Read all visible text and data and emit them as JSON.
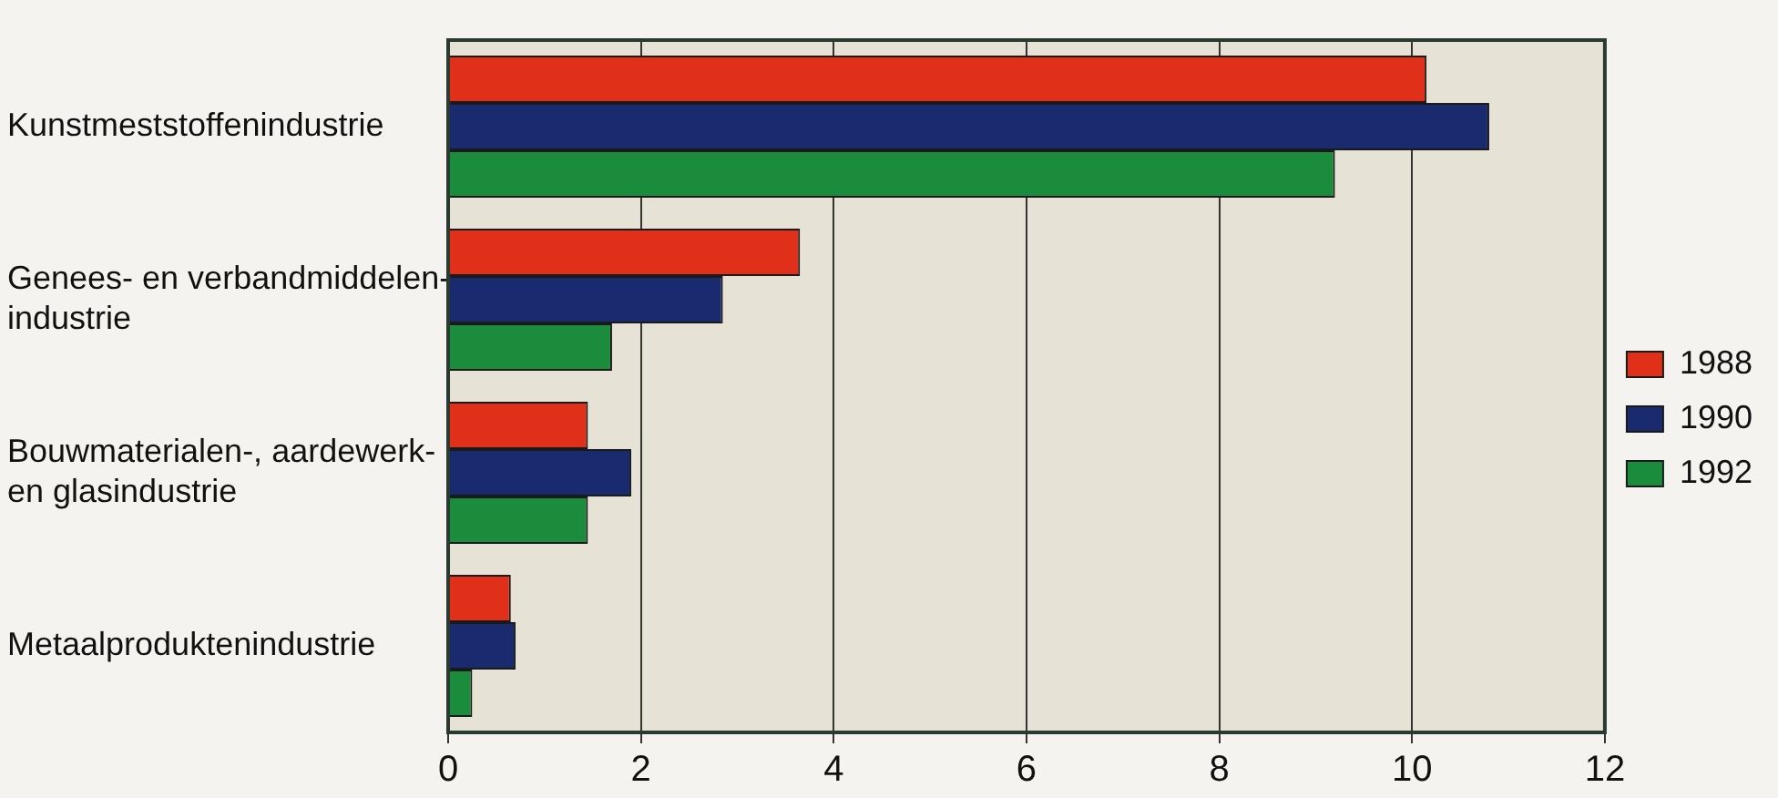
{
  "chart_data": {
    "type": "bar",
    "orientation": "horizontal",
    "categories": [
      "Kunstmeststoffenindustrie",
      "Genees- en verbandmiddelen-\nindustrie",
      "Bouwmaterialen-, aardewerk-\nen glasindustrie",
      "Metaalproduktenindustrie"
    ],
    "series": [
      {
        "name": "1988",
        "color": "#e0301a",
        "values": [
          10.15,
          3.65,
          1.45,
          0.65
        ]
      },
      {
        "name": "1990",
        "color": "#1a2a6e",
        "values": [
          10.8,
          2.85,
          1.9,
          0.7
        ]
      },
      {
        "name": "1992",
        "color": "#1a8c3c",
        "values": [
          9.2,
          1.7,
          1.45,
          0.25
        ]
      }
    ],
    "xlim": [
      0,
      12
    ],
    "xticks": [
      0,
      2,
      4,
      6,
      8,
      10,
      12
    ],
    "grid": "x",
    "legend": "right"
  }
}
